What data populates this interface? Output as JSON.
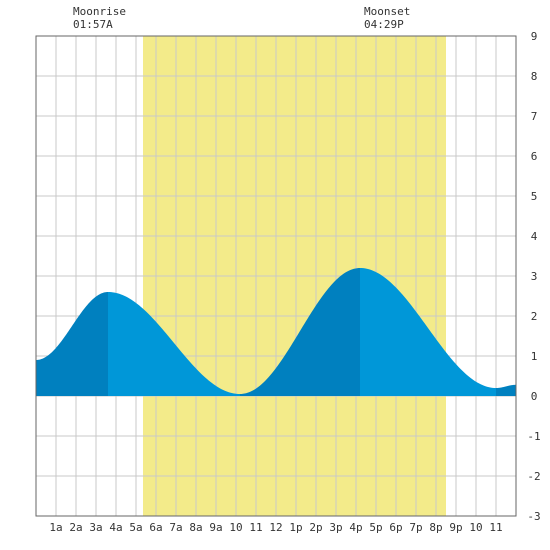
{
  "moonrise": {
    "label": "Moonrise",
    "time": "01:57A"
  },
  "moonset": {
    "label": "Moonset",
    "time": "04:29P"
  },
  "colors": {
    "daylight": "#f3eb8a",
    "tide_rising": "#0080bf",
    "tide_falling": "#0097d8",
    "grid": "#c8c8c8",
    "border": "#666666"
  },
  "chart_data": {
    "type": "area",
    "title": "",
    "xlabel": "",
    "ylabel": "",
    "xlim": [
      0,
      24
    ],
    "ylim": [
      -3,
      9
    ],
    "y_ticks": [
      "-3",
      "-2",
      "-1",
      "0",
      "1",
      "2",
      "3",
      "4",
      "5",
      "6",
      "7",
      "8",
      "9"
    ],
    "x_tick_labels": [
      "1a",
      "2a",
      "3a",
      "4a",
      "5a",
      "6a",
      "7a",
      "8a",
      "9a",
      "10",
      "11",
      "12",
      "1p",
      "2p",
      "3p",
      "4p",
      "5p",
      "6p",
      "7p",
      "8p",
      "9p",
      "10",
      "11"
    ],
    "grid": true,
    "daylight_span": [
      5.35,
      20.5
    ],
    "tide_extremes": [
      {
        "hour": 0.0,
        "height": 0.9
      },
      {
        "hour": 3.6,
        "height": 2.6
      },
      {
        "hour": 10.2,
        "height": 0.05
      },
      {
        "hour": 16.2,
        "height": 3.2
      },
      {
        "hour": 23.0,
        "height": 0.2
      },
      {
        "hour": 24.0,
        "height": 0.28
      }
    ]
  }
}
